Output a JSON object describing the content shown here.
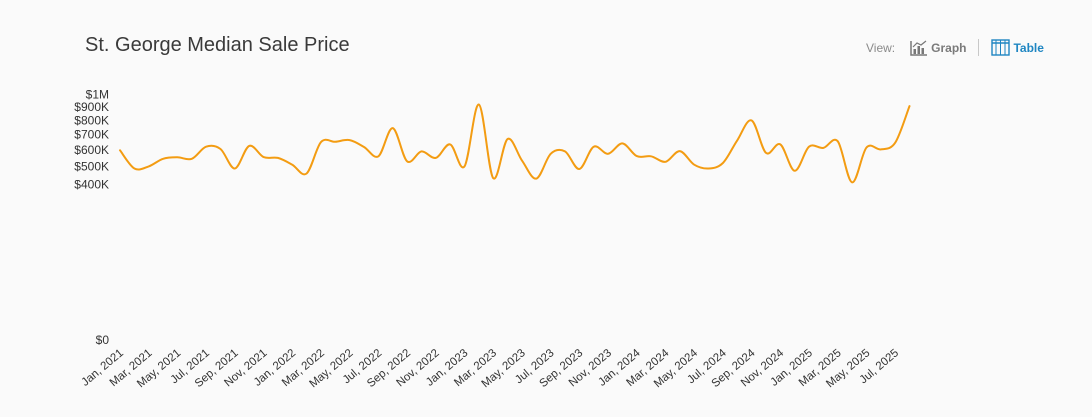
{
  "chart_data": {
    "type": "line",
    "title": "St. George Median Sale Price",
    "scale": "sqrt",
    "xlabel": "",
    "ylabel": "",
    "grid": false,
    "y_ticks": [
      {
        "value": 1000000,
        "label": "$1M"
      },
      {
        "value": 900000,
        "label": "$900K"
      },
      {
        "value": 800000,
        "label": "$800K"
      },
      {
        "value": 700000,
        "label": "$700K"
      },
      {
        "value": 600000,
        "label": "$600K"
      },
      {
        "value": 500000,
        "label": "$500K"
      },
      {
        "value": 400000,
        "label": "$400K"
      },
      {
        "value": 0,
        "label": "$0"
      }
    ],
    "ylim": [
      0,
      1000000
    ],
    "x_tick_labels": [
      "Jan, 2021",
      "Mar, 2021",
      "May, 2021",
      "Jul, 2021",
      "Sep, 2021",
      "Nov, 2021",
      "Jan, 2022",
      "Mar, 2022",
      "May, 2022",
      "Jul, 2022",
      "Sep, 2022",
      "Nov, 2022",
      "Jan, 2023",
      "Mar, 2023",
      "May, 2023",
      "Jul, 2023",
      "Sep, 2023",
      "Nov, 2023",
      "Jan, 2024",
      "Mar, 2024",
      "May, 2024",
      "Jul, 2024",
      "Sep, 2024",
      "Nov, 2024",
      "Jan, 2025",
      "Mar, 2025",
      "May, 2025",
      "Jul, 2025"
    ],
    "series": [
      {
        "color": "#f39c12",
        "x": [
          "Jan, 2021",
          "Feb, 2021",
          "Mar, 2021",
          "Apr, 2021",
          "May, 2021",
          "Jun, 2021",
          "Jul, 2021",
          "Aug, 2021",
          "Sep, 2021",
          "Oct, 2021",
          "Nov, 2021",
          "Dec, 2021",
          "Jan, 2022",
          "Feb, 2022",
          "Mar, 2022",
          "Apr, 2022",
          "May, 2022",
          "Jun, 2022",
          "Jul, 2022",
          "Aug, 2022",
          "Sep, 2022",
          "Oct, 2022",
          "Nov, 2022",
          "Dec, 2022",
          "Jan, 2023",
          "Feb, 2023",
          "Mar, 2023",
          "Apr, 2023",
          "May, 2023",
          "Jun, 2023",
          "Jul, 2023",
          "Aug, 2023",
          "Sep, 2023",
          "Oct, 2023",
          "Nov, 2023",
          "Dec, 2023",
          "Jan, 2024",
          "Feb, 2024",
          "Mar, 2024",
          "Apr, 2024",
          "May, 2024",
          "Jun, 2024",
          "Jul, 2024",
          "Aug, 2024",
          "Sep, 2024",
          "Oct, 2024",
          "Nov, 2024",
          "Dec, 2024",
          "Jan, 2025",
          "Feb, 2025",
          "Mar, 2025",
          "Apr, 2025",
          "May, 2025",
          "Jun, 2025",
          "Jul, 2025",
          "Aug, 2025"
        ],
        "values": [
          597000,
          488000,
          500000,
          545000,
          554000,
          545000,
          620000,
          605000,
          488000,
          625000,
          555000,
          550000,
          510000,
          460000,
          650000,
          652000,
          663000,
          618000,
          560000,
          745000,
          530000,
          590000,
          550000,
          635000,
          500000,
          920000,
          435000,
          670000,
          535000,
          432000,
          575000,
          590000,
          485000,
          620000,
          575000,
          641000,
          561000,
          560000,
          527000,
          592000,
          510000,
          488000,
          520000,
          662000,
          800000,
          581000,
          635000,
          475000,
          620000,
          612000,
          655000,
          412000,
          615000,
          603000,
          646000,
          908000
        ]
      }
    ]
  },
  "view": {
    "label": "View:",
    "graph_label": "Graph",
    "graph_icon": "bar-chart-icon",
    "table_label": "Table",
    "table_icon": "table-icon",
    "active": "Table",
    "active_color": "#1f86c2",
    "inactive_color": "#7a7a7a"
  }
}
